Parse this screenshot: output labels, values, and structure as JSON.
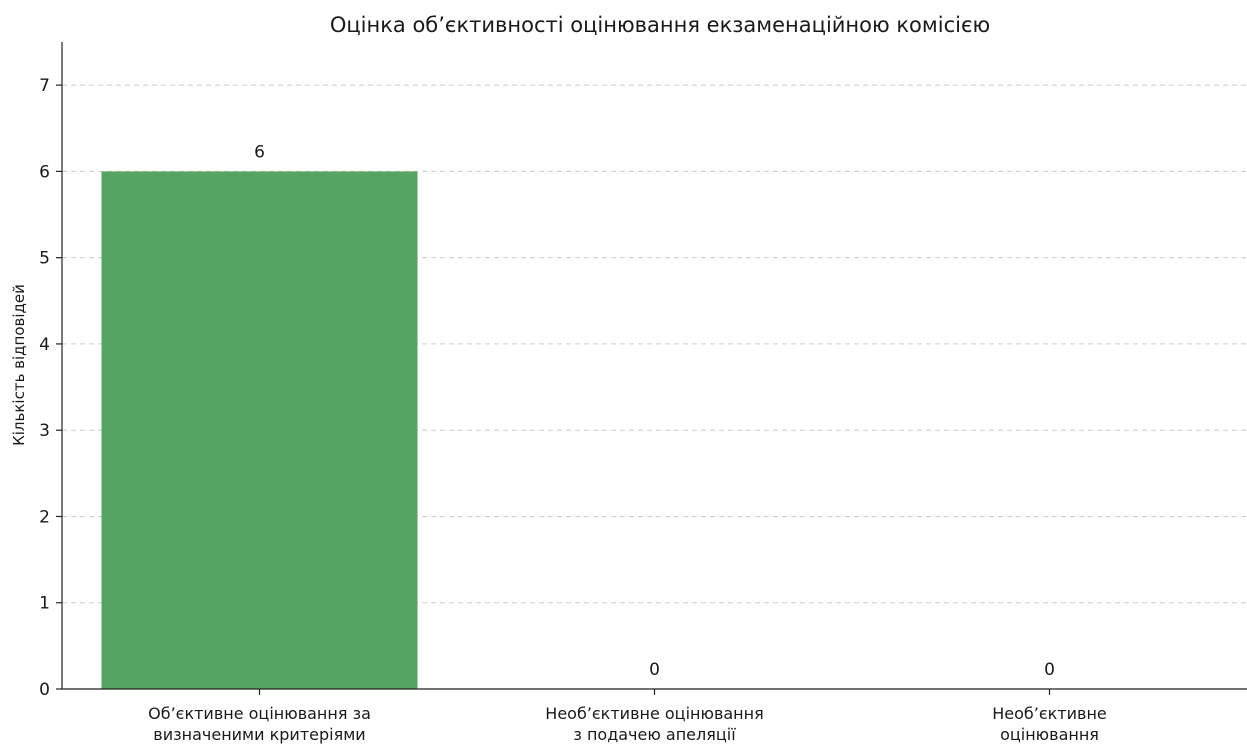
{
  "chart_data": {
    "type": "bar",
    "title": "Оцінка об’єктивності оцінювання екзаменаційною комісією",
    "xlabel": "",
    "ylabel": "Кількість відповідей",
    "categories": [
      [
        "Об’єктивне оцінювання за",
        "визначеними критеріями"
      ],
      [
        "Необ’єктивне оцінювання",
        "з подачею апеляції"
      ],
      [
        "Необ’єктивне",
        "оцінювання"
      ]
    ],
    "values": [
      6,
      0,
      0
    ],
    "data_labels": [
      "6",
      "0",
      "0"
    ],
    "ylim": [
      0,
      7.5
    ],
    "yticks": [
      0,
      1,
      2,
      3,
      4,
      5,
      6,
      7
    ],
    "grid": true,
    "bar_color": "#55a463"
  }
}
